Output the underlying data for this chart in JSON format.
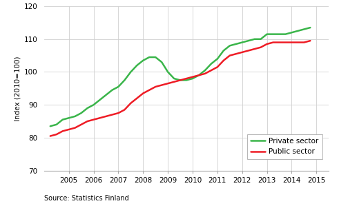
{
  "private_sector": {
    "x": [
      2004.25,
      2004.5,
      2004.75,
      2005.0,
      2005.25,
      2005.5,
      2005.75,
      2006.0,
      2006.25,
      2006.5,
      2006.75,
      2007.0,
      2007.25,
      2007.5,
      2007.75,
      2008.0,
      2008.25,
      2008.5,
      2008.75,
      2009.0,
      2009.25,
      2009.5,
      2009.75,
      2010.0,
      2010.25,
      2010.5,
      2010.75,
      2011.0,
      2011.25,
      2011.5,
      2011.75,
      2012.0,
      2012.25,
      2012.5,
      2012.75,
      2013.0,
      2013.25,
      2013.5,
      2013.75,
      2014.0,
      2014.25,
      2014.5,
      2014.75
    ],
    "y": [
      83.5,
      84.0,
      85.5,
      86.0,
      86.5,
      87.5,
      89.0,
      90.0,
      91.5,
      93.0,
      94.5,
      95.5,
      97.5,
      100.0,
      102.0,
      103.5,
      104.5,
      104.5,
      103.0,
      100.0,
      98.0,
      97.5,
      97.5,
      98.0,
      99.0,
      100.5,
      102.5,
      104.0,
      106.5,
      108.0,
      108.5,
      109.0,
      109.5,
      110.0,
      110.0,
      111.5,
      111.5,
      111.5,
      111.5,
      112.0,
      112.5,
      113.0,
      113.5
    ]
  },
  "public_sector": {
    "x": [
      2004.25,
      2004.5,
      2004.75,
      2005.0,
      2005.25,
      2005.5,
      2005.75,
      2006.0,
      2006.25,
      2006.5,
      2006.75,
      2007.0,
      2007.25,
      2007.5,
      2007.75,
      2008.0,
      2008.25,
      2008.5,
      2008.75,
      2009.0,
      2009.25,
      2009.5,
      2009.75,
      2010.0,
      2010.25,
      2010.5,
      2010.75,
      2011.0,
      2011.25,
      2011.5,
      2011.75,
      2012.0,
      2012.25,
      2012.5,
      2012.75,
      2013.0,
      2013.25,
      2013.5,
      2013.75,
      2014.0,
      2014.25,
      2014.5,
      2014.75
    ],
    "y": [
      80.5,
      81.0,
      82.0,
      82.5,
      83.0,
      84.0,
      85.0,
      85.5,
      86.0,
      86.5,
      87.0,
      87.5,
      88.5,
      90.5,
      92.0,
      93.5,
      94.5,
      95.5,
      96.0,
      96.5,
      97.0,
      97.5,
      98.0,
      98.5,
      99.0,
      99.5,
      100.5,
      101.5,
      103.5,
      105.0,
      105.5,
      106.0,
      106.5,
      107.0,
      107.5,
      108.5,
      109.0,
      109.0,
      109.0,
      109.0,
      109.0,
      109.0,
      109.5
    ]
  },
  "private_color": "#3ab54a",
  "public_color": "#ee1c25",
  "ylabel": "Index (2010=100)",
  "xlim": [
    2004.0,
    2015.5
  ],
  "ylim": [
    70,
    120
  ],
  "yticks": [
    70,
    80,
    90,
    100,
    110,
    120
  ],
  "xticks": [
    2005,
    2006,
    2007,
    2008,
    2009,
    2010,
    2011,
    2012,
    2013,
    2014,
    2015
  ],
  "source_text": "Source: Statistics Finland",
  "legend_labels": [
    "Private sector",
    "Public sector"
  ],
  "line_width": 1.8,
  "bg_color": "#ffffff",
  "grid_color": "#d0d0d0"
}
